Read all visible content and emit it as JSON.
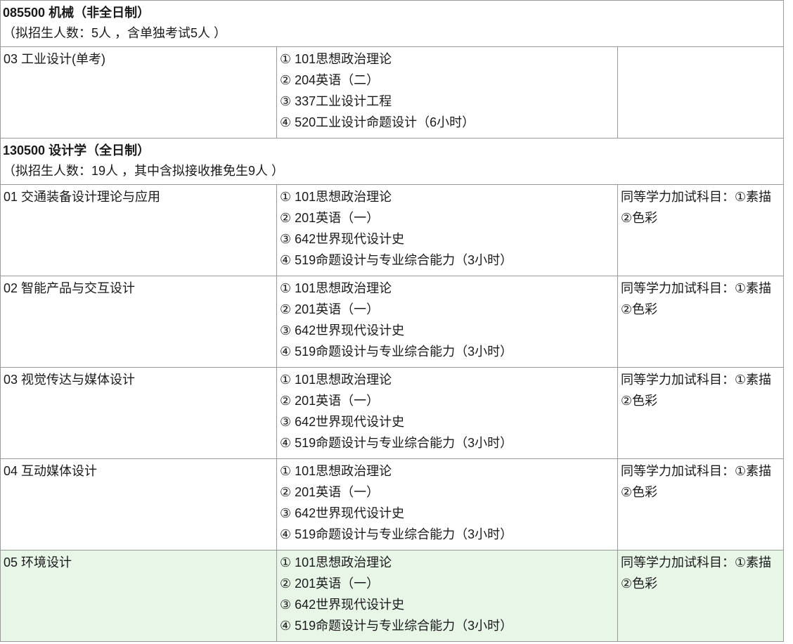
{
  "table": {
    "colors": {
      "border": "#999999",
      "highlight_row_background": "#e8f6e8"
    },
    "sections": [
      {
        "program_title": "085500 机械（非全日制）",
        "enrollment_note": "（拟招生人数：5人 ，含单独考试5人 ）",
        "rows": [
          {
            "direction": "03 工业设计(单考)",
            "subjects": [
              "① 101思想政治理论",
              "② 204英语（二）",
              "③ 337工业设计工程",
              "④ 520工业设计命题设计（6小时）"
            ],
            "note": "",
            "highlight": false
          }
        ]
      },
      {
        "program_title": "130500 设计学（全日制）",
        "enrollment_note": "（拟招生人数：19人 ，其中含拟接收推免生9人 ）",
        "rows": [
          {
            "direction": "01 交通装备设计理论与应用",
            "subjects": [
              "① 101思想政治理论",
              "② 201英语（一）",
              "③ 642世界现代设计史",
              "④ 519命题设计与专业综合能力（3小时）"
            ],
            "note": "同等学力加试科目：①素描②色彩",
            "highlight": false
          },
          {
            "direction": "02 智能产品与交互设计",
            "subjects": [
              "① 101思想政治理论",
              "② 201英语（一）",
              "③ 642世界现代设计史",
              "④ 519命题设计与专业综合能力（3小时）"
            ],
            "note": "同等学力加试科目：①素描②色彩",
            "highlight": false
          },
          {
            "direction": "03 视觉传达与媒体设计",
            "subjects": [
              "① 101思想政治理论",
              "② 201英语（一）",
              "③ 642世界现代设计史",
              "④ 519命题设计与专业综合能力（3小时）"
            ],
            "note": "同等学力加试科目：①素描②色彩",
            "highlight": false
          },
          {
            "direction": "04 互动媒体设计",
            "subjects": [
              "① 101思想政治理论",
              "② 201英语（一）",
              "③ 642世界现代设计史",
              "④ 519命题设计与专业综合能力（3小时）"
            ],
            "note": "同等学力加试科目：①素描②色彩",
            "highlight": false
          },
          {
            "direction": "05 环境设计",
            "subjects": [
              "① 101思想政治理论",
              "② 201英语（一）",
              "③ 642世界现代设计史",
              "④ 519命题设计与专业综合能力（3小时）"
            ],
            "note": "同等学力加试科目：①素描②色彩",
            "highlight": true
          }
        ]
      }
    ]
  }
}
